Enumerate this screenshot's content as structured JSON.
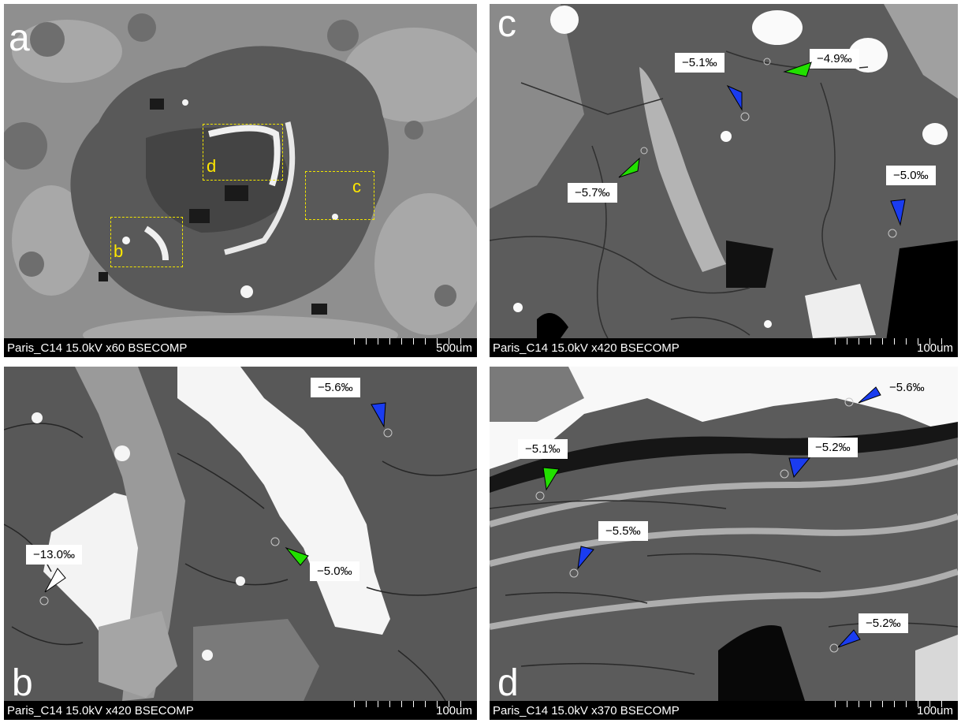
{
  "panels": {
    "a": {
      "letter": "a",
      "meta": "Paris_C14 15.0kV x60 BSECOMP",
      "scale": "500um",
      "boxes": {
        "d": "d",
        "c": "c",
        "b": "b"
      }
    },
    "c": {
      "letter": "c",
      "meta": "Paris_C14 15.0kV x420 BSECOMP",
      "scale": "100um",
      "labels": [
        "−5.1‰",
        "−4.9‰",
        "−5.7‰",
        "−5.0‰"
      ]
    },
    "b": {
      "letter": "b",
      "meta": "Paris_C14 15.0kV x420 BSECOMP",
      "scale": "100um",
      "labels": [
        "−5.6‰",
        "−13.0‰",
        "−5.0‰"
      ]
    },
    "d": {
      "letter": "d",
      "meta": "Paris_C14 15.0kV x370 BSECOMP",
      "scale": "100um",
      "labels": [
        "−5.6‰",
        "−5.1‰",
        "−5.2‰",
        "−5.5‰",
        "−5.2‰"
      ]
    }
  },
  "colors": {
    "arrow_blue": "#1a3cf0",
    "arrow_green": "#22e000",
    "arrow_white": "#ffffff",
    "box_yellow": "#f2e600"
  }
}
